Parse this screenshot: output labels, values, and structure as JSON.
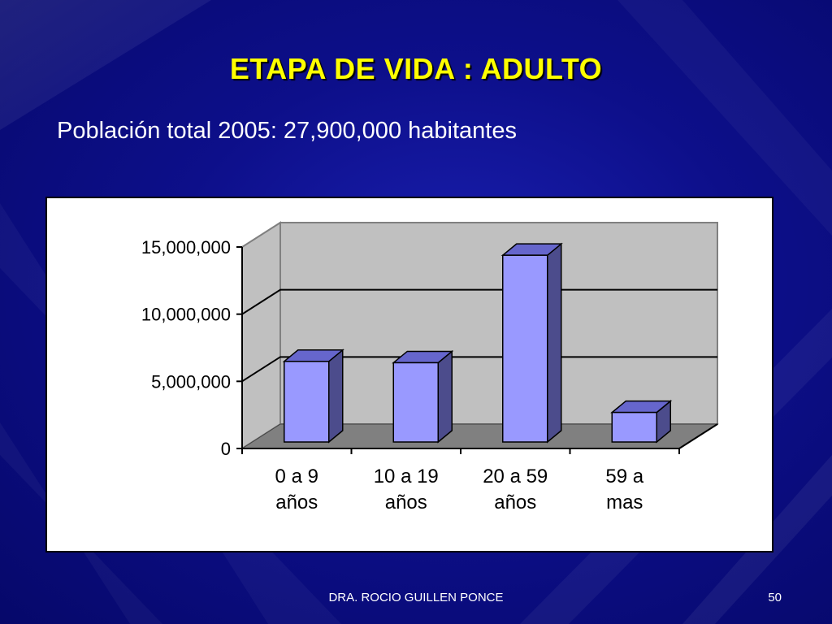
{
  "slide": {
    "title": "ETAPA DE VIDA : ADULTO",
    "subtitle": "Población total 2005: 27,900,000 habitantes",
    "footer": "DRA. ROCIO GUILLEN PONCE",
    "page_number": "50"
  },
  "colors": {
    "background": "#0d0f8a",
    "title": "#ffff00",
    "bar_front": "#9999ff",
    "bar_side": "#4c4c8c",
    "bar_top": "#6666cc",
    "wall": "#c0c0c0",
    "floor": "#808080"
  },
  "chart_data": {
    "type": "bar",
    "categories": [
      [
        "0 a 9",
        "años"
      ],
      [
        "10 a 19",
        "años"
      ],
      [
        "20 a 59",
        "años"
      ],
      [
        "59 a",
        "mas"
      ]
    ],
    "values": [
      6000000,
      5900000,
      13900000,
      2200000
    ],
    "ylim": [
      0,
      15000000
    ],
    "yticks": [
      0,
      5000000,
      10000000,
      15000000
    ],
    "ytick_labels": [
      "0",
      "5,000,000",
      "10,000,000",
      "15,000,000"
    ],
    "grid": true,
    "three_d": true
  }
}
